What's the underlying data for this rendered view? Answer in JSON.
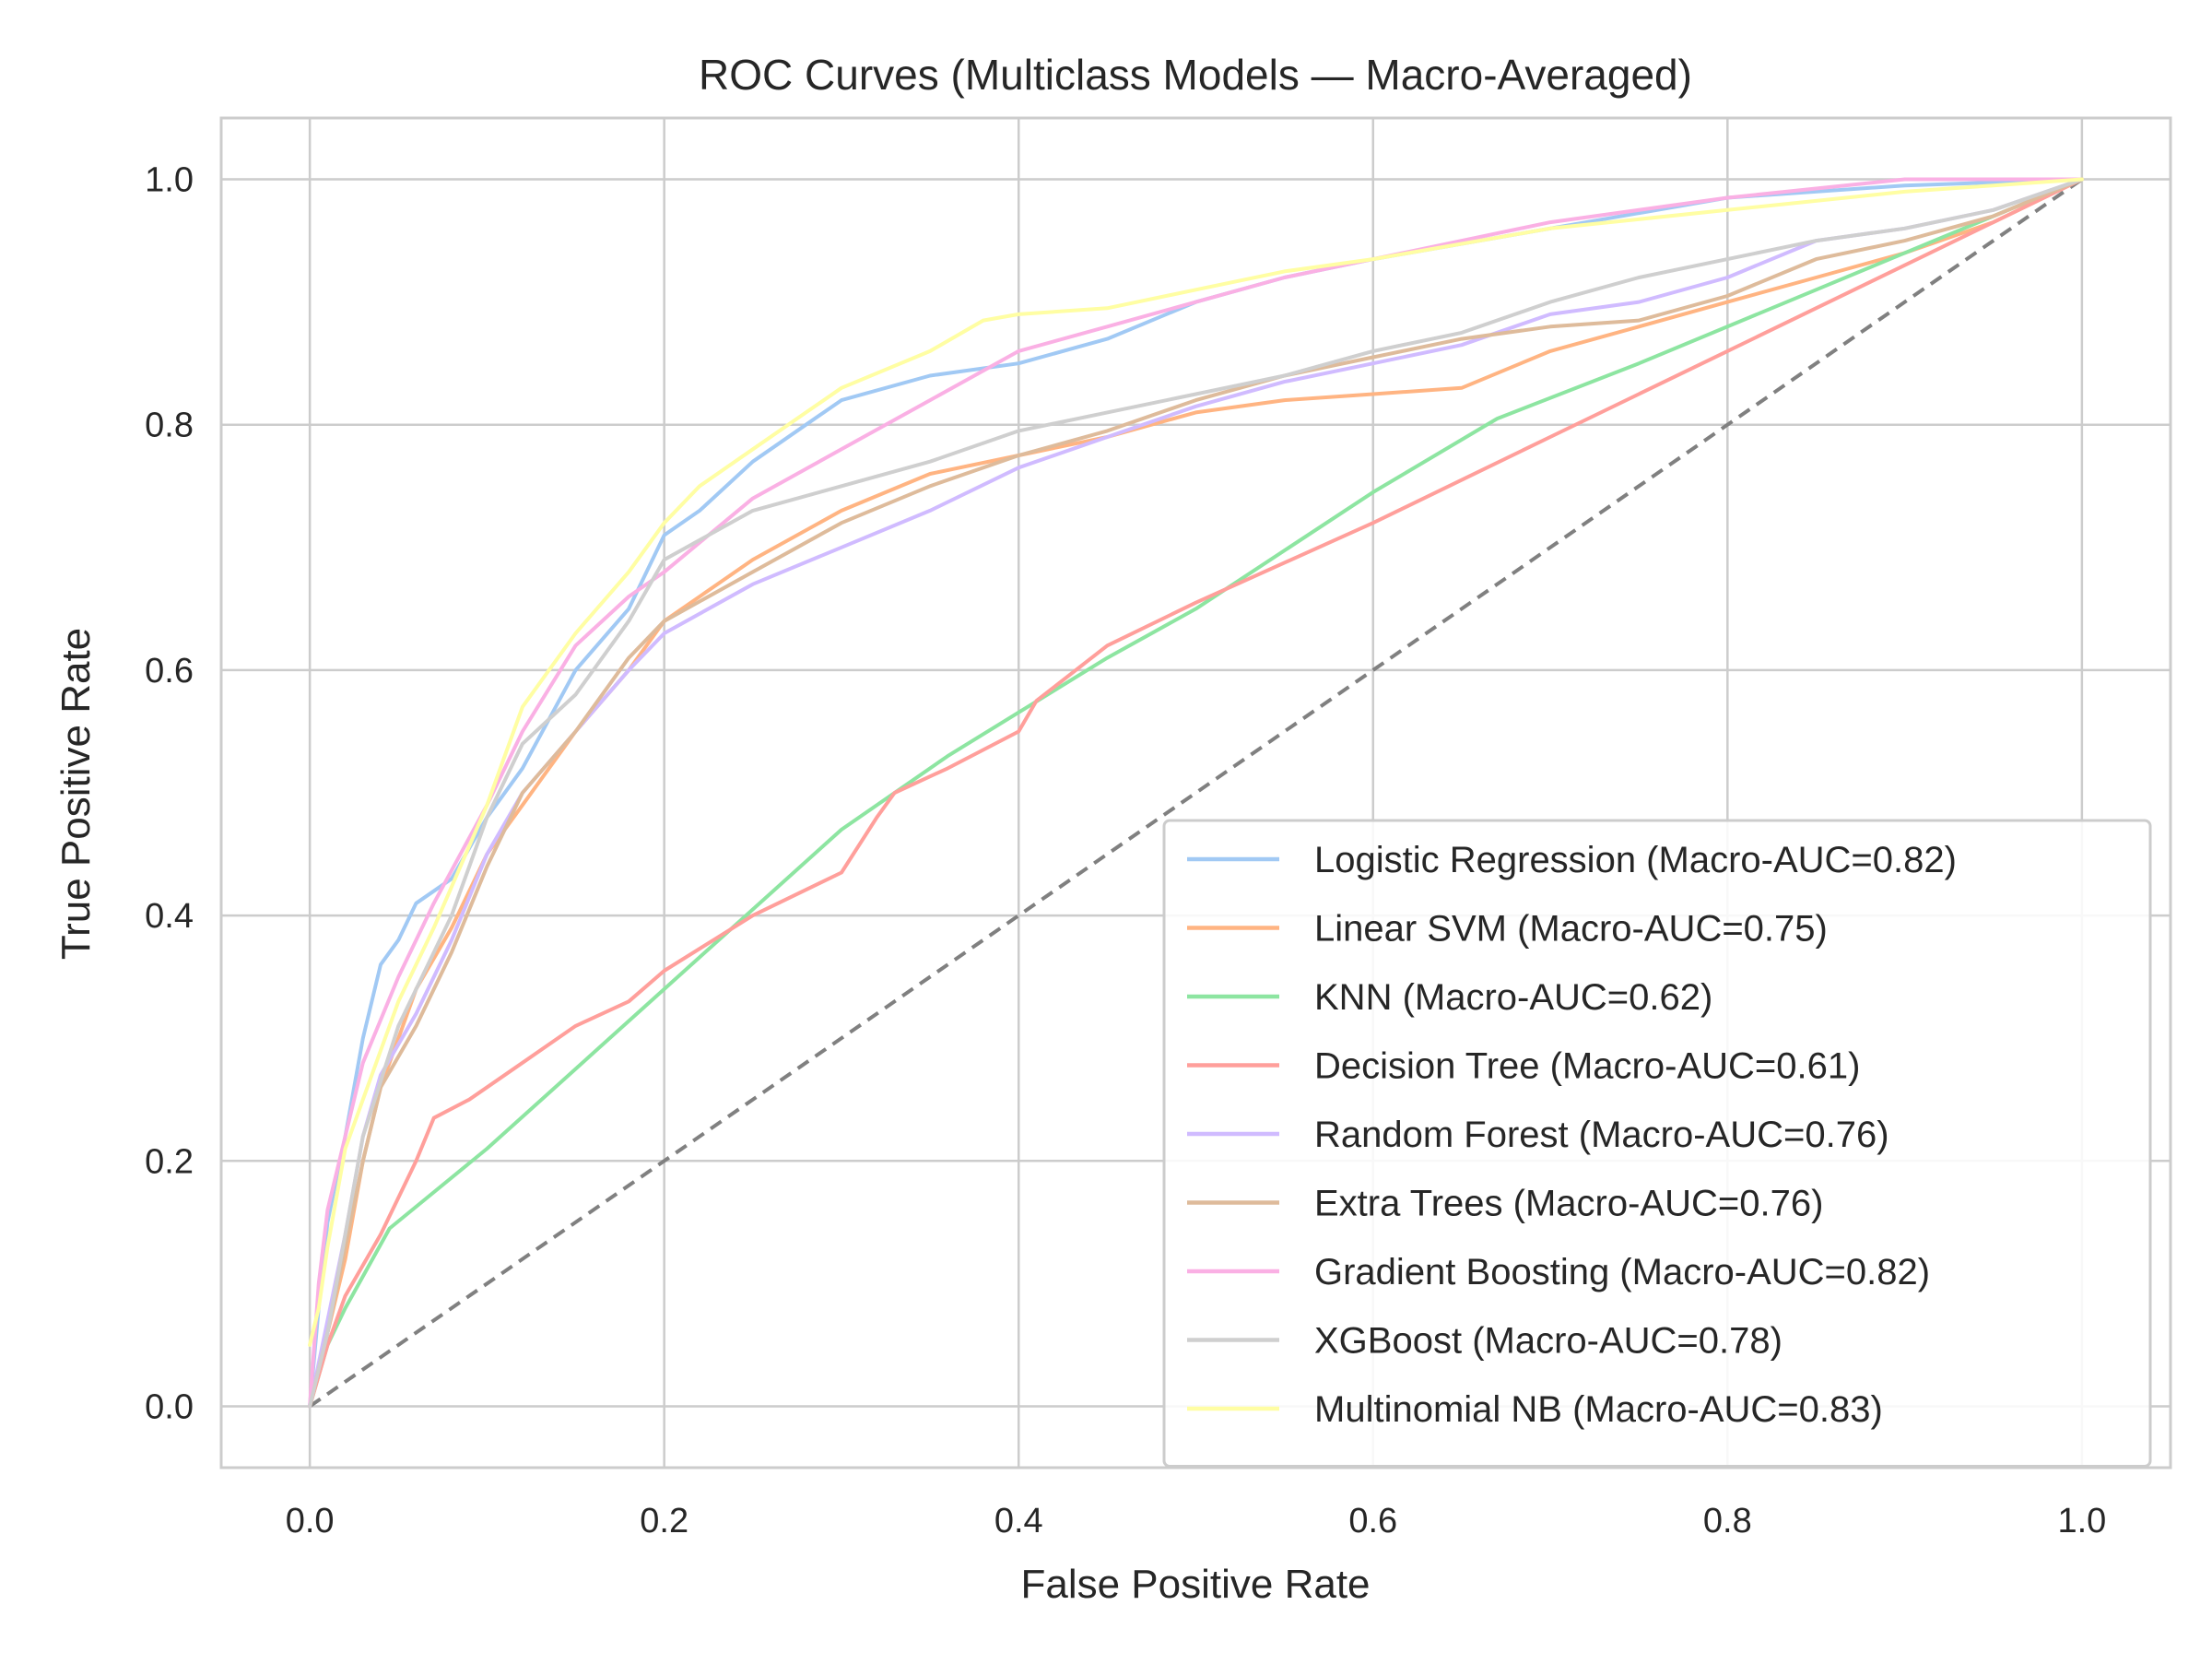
{
  "chart_data": {
    "type": "line",
    "title": "ROC Curves (Multiclass Models — Macro-Averaged)",
    "xlabel": "False Positive Rate",
    "ylabel": "True Positive Rate",
    "xlim": [
      -0.05,
      1.05
    ],
    "ylim": [
      -0.05,
      1.05
    ],
    "x_ticks": [
      "0.0",
      "0.2",
      "0.4",
      "0.6",
      "0.8",
      "1.0"
    ],
    "y_ticks": [
      "0.0",
      "0.2",
      "0.4",
      "0.6",
      "0.8",
      "1.0"
    ],
    "grid": true,
    "legend_position": "lower-right",
    "reference_line": {
      "x": [
        0,
        1
      ],
      "y": [
        0,
        1
      ],
      "style": "dashed",
      "color": "#808080"
    },
    "series": [
      {
        "name": "Logistic Regression (Macro-AUC=0.82)",
        "color": "#a1c9f4",
        "x": [
          0,
          0.005,
          0.01,
          0.02,
          0.03,
          0.04,
          0.05,
          0.06,
          0.08,
          0.1,
          0.12,
          0.15,
          0.18,
          0.2,
          0.22,
          0.25,
          0.28,
          0.3,
          0.35,
          0.4,
          0.45,
          0.5,
          0.55,
          0.6,
          0.7,
          0.8,
          0.9,
          1.0
        ],
        "y": [
          0,
          0.08,
          0.15,
          0.22,
          0.3,
          0.36,
          0.38,
          0.41,
          0.43,
          0.48,
          0.52,
          0.6,
          0.65,
          0.71,
          0.73,
          0.77,
          0.8,
          0.82,
          0.84,
          0.85,
          0.87,
          0.9,
          0.92,
          0.935,
          0.96,
          0.985,
          0.995,
          1.0
        ]
      },
      {
        "name": "Linear SVM (Macro-AUC=0.75)",
        "color": "#ffb482",
        "x": [
          0,
          0.01,
          0.02,
          0.03,
          0.04,
          0.05,
          0.06,
          0.08,
          0.1,
          0.12,
          0.15,
          0.18,
          0.2,
          0.22,
          0.25,
          0.3,
          0.35,
          0.4,
          0.45,
          0.5,
          0.55,
          0.6,
          0.65,
          0.7,
          0.75,
          0.8,
          0.85,
          0.9,
          0.95,
          1.0
        ],
        "y": [
          0,
          0.06,
          0.12,
          0.2,
          0.26,
          0.3,
          0.34,
          0.39,
          0.45,
          0.49,
          0.55,
          0.6,
          0.64,
          0.66,
          0.69,
          0.73,
          0.76,
          0.775,
          0.79,
          0.81,
          0.82,
          0.825,
          0.83,
          0.86,
          0.88,
          0.9,
          0.92,
          0.94,
          0.965,
          1.0
        ]
      },
      {
        "name": "KNN (Macro-AUC=0.62)",
        "color": "#8de5a1",
        "x": [
          0,
          0.01,
          0.02,
          0.045,
          0.1,
          0.2,
          0.3,
          0.36,
          0.45,
          0.5,
          0.6,
          0.67,
          0.75,
          0.85,
          0.95,
          1.0
        ],
        "y": [
          0,
          0.05,
          0.08,
          0.145,
          0.21,
          0.34,
          0.47,
          0.53,
          0.61,
          0.65,
          0.745,
          0.805,
          0.85,
          0.91,
          0.97,
          1.0
        ]
      },
      {
        "name": "Decision Tree (Macro-AUC=0.61)",
        "color": "#ff9f9b",
        "x": [
          0,
          0.01,
          0.02,
          0.04,
          0.06,
          0.07,
          0.09,
          0.12,
          0.15,
          0.18,
          0.2,
          0.25,
          0.3,
          0.32,
          0.33,
          0.36,
          0.4,
          0.41,
          0.45,
          0.5,
          0.6,
          0.7,
          0.8,
          0.9,
          1.0
        ],
        "y": [
          0,
          0.05,
          0.09,
          0.14,
          0.2,
          0.235,
          0.25,
          0.28,
          0.31,
          0.33,
          0.355,
          0.4,
          0.435,
          0.48,
          0.5,
          0.52,
          0.55,
          0.575,
          0.62,
          0.655,
          0.72,
          0.79,
          0.86,
          0.93,
          1.0
        ]
      },
      {
        "name": "Random Forest (Macro-AUC=0.76)",
        "color": "#d0bbff",
        "x": [
          0,
          0.01,
          0.02,
          0.03,
          0.04,
          0.06,
          0.08,
          0.1,
          0.12,
          0.15,
          0.18,
          0.2,
          0.25,
          0.3,
          0.35,
          0.4,
          0.45,
          0.5,
          0.55,
          0.6,
          0.65,
          0.7,
          0.75,
          0.8,
          0.85,
          0.9,
          0.95,
          1.0
        ],
        "y": [
          0,
          0.07,
          0.14,
          0.22,
          0.27,
          0.32,
          0.38,
          0.45,
          0.5,
          0.55,
          0.6,
          0.63,
          0.67,
          0.7,
          0.73,
          0.765,
          0.79,
          0.815,
          0.835,
          0.85,
          0.865,
          0.89,
          0.9,
          0.92,
          0.95,
          0.96,
          0.975,
          1.0
        ]
      },
      {
        "name": "Extra Trees (Macro-AUC=0.76)",
        "color": "#debb9b",
        "x": [
          0,
          0.01,
          0.02,
          0.03,
          0.04,
          0.06,
          0.08,
          0.1,
          0.12,
          0.15,
          0.18,
          0.2,
          0.25,
          0.3,
          0.35,
          0.4,
          0.45,
          0.5,
          0.55,
          0.6,
          0.65,
          0.7,
          0.75,
          0.8,
          0.85,
          0.9,
          0.95,
          1.0
        ],
        "y": [
          0,
          0.06,
          0.13,
          0.2,
          0.26,
          0.31,
          0.37,
          0.44,
          0.5,
          0.55,
          0.61,
          0.64,
          0.68,
          0.72,
          0.75,
          0.775,
          0.795,
          0.82,
          0.84,
          0.855,
          0.87,
          0.88,
          0.885,
          0.905,
          0.935,
          0.95,
          0.97,
          1.0
        ]
      },
      {
        "name": "Gradient Boosting (Macro-AUC=0.82)",
        "color": "#fab0e4",
        "x": [
          0,
          0.005,
          0.01,
          0.02,
          0.03,
          0.05,
          0.07,
          0.1,
          0.12,
          0.15,
          0.18,
          0.2,
          0.25,
          0.3,
          0.35,
          0.4,
          0.45,
          0.5,
          0.55,
          0.6,
          0.7,
          0.8,
          0.9,
          1.0
        ],
        "y": [
          0,
          0.1,
          0.16,
          0.22,
          0.28,
          0.35,
          0.41,
          0.49,
          0.55,
          0.62,
          0.66,
          0.68,
          0.74,
          0.78,
          0.82,
          0.86,
          0.88,
          0.9,
          0.92,
          0.935,
          0.965,
          0.985,
          1.0,
          1.0
        ]
      },
      {
        "name": "XGBoost (Macro-AUC=0.78)",
        "color": "#cfcfcf",
        "x": [
          0,
          0.01,
          0.02,
          0.03,
          0.05,
          0.08,
          0.1,
          0.12,
          0.15,
          0.18,
          0.2,
          0.25,
          0.3,
          0.35,
          0.4,
          0.45,
          0.5,
          0.55,
          0.6,
          0.65,
          0.7,
          0.75,
          0.8,
          0.85,
          0.9,
          0.95,
          1.0
        ],
        "y": [
          0,
          0.06,
          0.14,
          0.22,
          0.31,
          0.4,
          0.48,
          0.54,
          0.58,
          0.64,
          0.69,
          0.73,
          0.75,
          0.77,
          0.795,
          0.81,
          0.825,
          0.84,
          0.86,
          0.875,
          0.9,
          0.92,
          0.935,
          0.95,
          0.96,
          0.975,
          1.0
        ]
      },
      {
        "name": "Multinomial NB (Macro-AUC=0.83)",
        "color": "#fffea3",
        "x": [
          0,
          0.005,
          0.01,
          0.02,
          0.03,
          0.05,
          0.07,
          0.1,
          0.12,
          0.15,
          0.18,
          0.2,
          0.22,
          0.25,
          0.28,
          0.3,
          0.35,
          0.38,
          0.4,
          0.45,
          0.5,
          0.55,
          0.6,
          0.7,
          0.8,
          0.9,
          1.0
        ],
        "y": [
          0.05,
          0.08,
          0.13,
          0.21,
          0.25,
          0.33,
          0.39,
          0.49,
          0.57,
          0.63,
          0.68,
          0.72,
          0.75,
          0.78,
          0.81,
          0.83,
          0.86,
          0.885,
          0.89,
          0.895,
          0.91,
          0.925,
          0.935,
          0.96,
          0.975,
          0.99,
          1.0
        ]
      }
    ]
  }
}
